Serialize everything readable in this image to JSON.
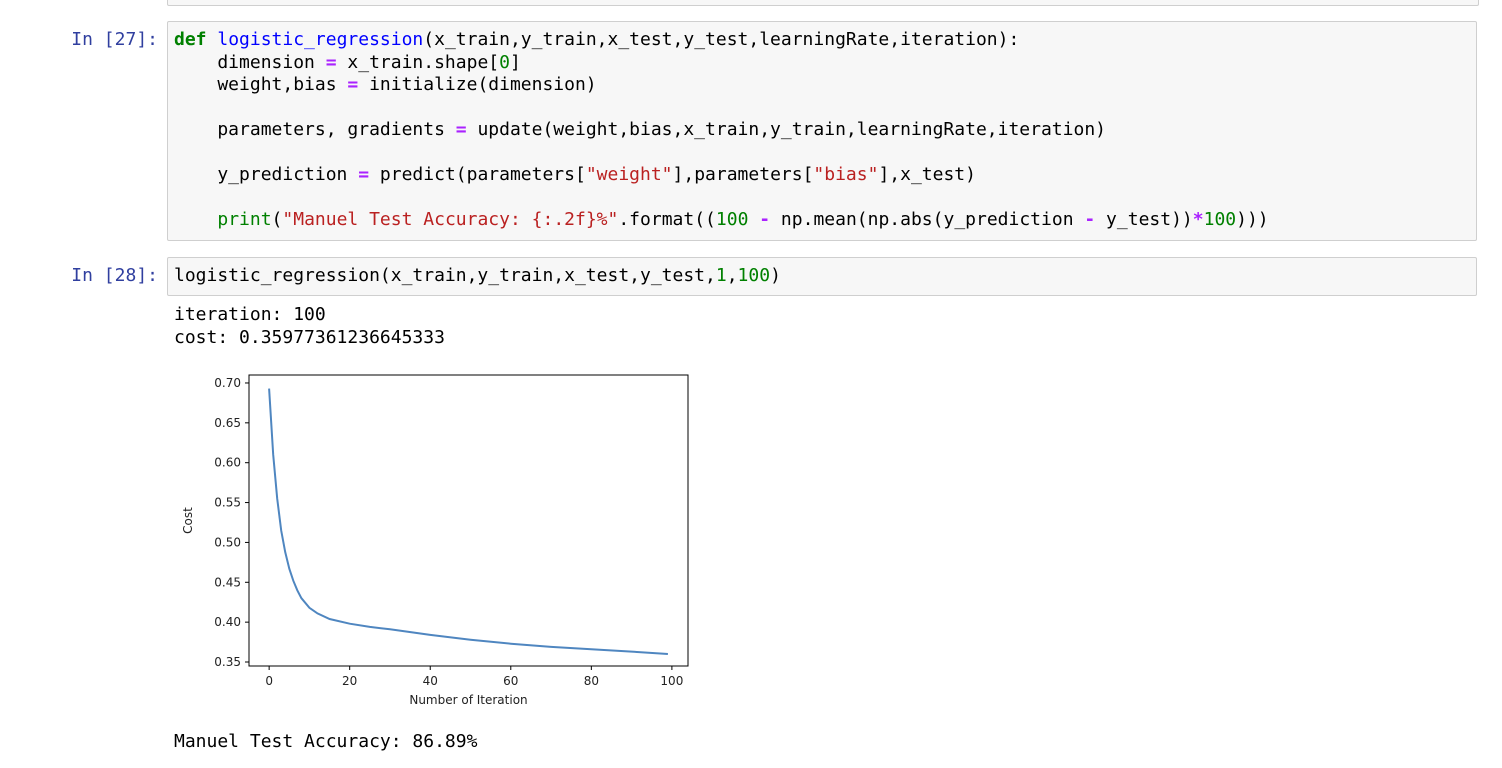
{
  "cells": [
    {
      "prompt": "In [27]:",
      "lines": [
        [
          [
            "kw",
            "def"
          ],
          [
            "t",
            " "
          ],
          [
            "fn",
            "logistic_regression"
          ],
          [
            "t",
            "(x_train,y_train,x_test,y_test,learningRate,iteration):"
          ]
        ],
        [
          [
            "t",
            "    dimension "
          ],
          [
            "op",
            "="
          ],
          [
            "t",
            " x_train.shape["
          ],
          [
            "num",
            "0"
          ],
          [
            "t",
            "]"
          ]
        ],
        [
          [
            "t",
            "    weight,bias "
          ],
          [
            "op",
            "="
          ],
          [
            "t",
            " initialize(dimension)"
          ]
        ],
        [
          [
            "t",
            ""
          ]
        ],
        [
          [
            "t",
            "    parameters, gradients "
          ],
          [
            "op",
            "="
          ],
          [
            "t",
            " update(weight,bias,x_train,y_train,learningRate,iteration)"
          ]
        ],
        [
          [
            "t",
            ""
          ]
        ],
        [
          [
            "t",
            "    y_prediction "
          ],
          [
            "op",
            "="
          ],
          [
            "t",
            " predict(parameters["
          ],
          [
            "str",
            "\"weight\""
          ],
          [
            "t",
            "],parameters["
          ],
          [
            "str",
            "\"bias\""
          ],
          [
            "t",
            "],x_test)"
          ]
        ],
        [
          [
            "t",
            ""
          ]
        ],
        [
          [
            "t",
            "    "
          ],
          [
            "bi",
            "print"
          ],
          [
            "t",
            "("
          ],
          [
            "str",
            "\"Manuel Test Accuracy: {:.2f}%\""
          ],
          [
            "t",
            ".format(("
          ],
          [
            "num",
            "100"
          ],
          [
            "t",
            " "
          ],
          [
            "op",
            "-"
          ],
          [
            "t",
            " np.mean(np.abs(y_prediction "
          ],
          [
            "op",
            "-"
          ],
          [
            "t",
            " y_test))"
          ],
          [
            "op",
            "*"
          ],
          [
            "num",
            "100"
          ],
          [
            "t",
            ")))"
          ]
        ]
      ]
    },
    {
      "prompt": "In [28]:",
      "lines": [
        [
          [
            "t",
            "logistic_regression(x_train,y_train,x_test,y_test,"
          ],
          [
            "num",
            "1"
          ],
          [
            "t",
            ","
          ],
          [
            "num",
            "100"
          ],
          [
            "t",
            ")"
          ]
        ]
      ]
    }
  ],
  "output": {
    "iteration_line": "iteration: 100",
    "cost_line": "cost: 0.35977361236645333",
    "accuracy_line": "Manuel Test Accuracy: 86.89%"
  },
  "chart_data": {
    "type": "line",
    "xlabel": "Number of Iteration",
    "ylabel": "Cost",
    "xlim": [
      -5,
      104
    ],
    "ylim": [
      0.345,
      0.71
    ],
    "xticks": [
      0,
      20,
      40,
      60,
      80,
      100
    ],
    "yticks": [
      0.35,
      0.4,
      0.45,
      0.5,
      0.55,
      0.6,
      0.65,
      0.7
    ],
    "ytick_labels": [
      "0.35",
      "0.40",
      "0.45",
      "0.50",
      "0.55",
      "0.60",
      "0.65",
      "0.70"
    ],
    "color": "#4f86c0",
    "x": [
      0,
      1,
      2,
      3,
      4,
      5,
      6,
      7,
      8,
      10,
      12,
      15,
      20,
      25,
      30,
      40,
      50,
      60,
      70,
      80,
      90,
      99
    ],
    "y": [
      0.693,
      0.61,
      0.555,
      0.515,
      0.488,
      0.467,
      0.452,
      0.44,
      0.43,
      0.418,
      0.411,
      0.404,
      0.398,
      0.394,
      0.391,
      0.384,
      0.378,
      0.373,
      0.369,
      0.366,
      0.363,
      0.36
    ]
  }
}
